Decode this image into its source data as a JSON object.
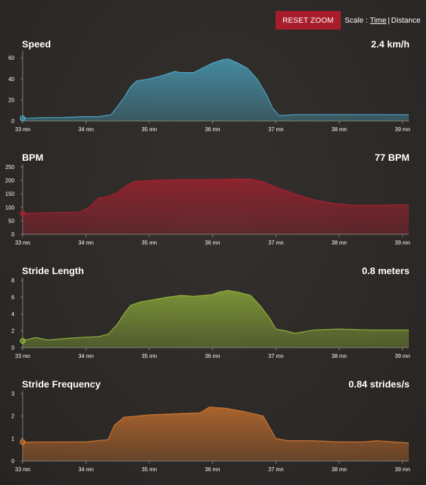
{
  "toolbar": {
    "reset_zoom_label": "RESET ZOOM",
    "scale_label": "Scale :",
    "scale_options": [
      "Time",
      "Distance"
    ],
    "scale_selected": "Time",
    "separator": "|"
  },
  "colors": {
    "speed": "#4ca9c8",
    "bpm": "#a8202f",
    "stride_length": "#93b53a",
    "stride_frequency": "#d2762f",
    "reset_button": "#a81d2c"
  },
  "chart_data": [
    {
      "type": "area",
      "title": "Speed",
      "current_value": "2.4 km/h",
      "x_ticks": [
        "33 mn",
        "34 mn",
        "35 mn",
        "36 mn",
        "37 mn",
        "38 mn",
        "39 mn"
      ],
      "y_ticks": [
        "0",
        "20",
        "40",
        "60"
      ],
      "xlim": [
        33,
        39.1
      ],
      "ylim": [
        0,
        64
      ],
      "x": [
        33,
        33.3,
        33.6,
        33.9,
        34.2,
        34.4,
        34.5,
        34.6,
        34.7,
        34.8,
        35.0,
        35.2,
        35.4,
        35.5,
        35.7,
        35.9,
        36.0,
        36.15,
        36.25,
        36.4,
        36.55,
        36.7,
        36.85,
        36.95,
        37.05,
        37.3,
        37.6,
        38.0,
        38.5,
        39.1
      ],
      "values": [
        2.4,
        3,
        3,
        4,
        4,
        6,
        14,
        22,
        32,
        38,
        40,
        43,
        47,
        46,
        46,
        52,
        55,
        58,
        59,
        55,
        50,
        40,
        25,
        12,
        5,
        6,
        6,
        6,
        6,
        6
      ]
    },
    {
      "type": "area",
      "title": "BPM",
      "current_value": "77 BPM",
      "x_ticks": [
        "33 mn",
        "34 mn",
        "35 mn",
        "36 mn",
        "37 mn",
        "38 mn",
        "39 mn"
      ],
      "y_ticks": [
        "0",
        "50",
        "100",
        "150",
        "200",
        "250"
      ],
      "xlim": [
        33,
        39.1
      ],
      "ylim": [
        0,
        250
      ],
      "x": [
        33,
        33.4,
        33.9,
        34.05,
        34.2,
        34.35,
        34.5,
        34.6,
        34.75,
        35.0,
        35.3,
        35.6,
        36.0,
        36.3,
        36.6,
        36.8,
        37.0,
        37.3,
        37.6,
        37.9,
        38.2,
        38.6,
        39.1
      ],
      "values": [
        77,
        80,
        82,
        100,
        135,
        140,
        155,
        175,
        195,
        200,
        202,
        203,
        203,
        205,
        205,
        195,
        175,
        150,
        128,
        115,
        108,
        108,
        110
      ]
    },
    {
      "type": "area",
      "title": "Stride Length",
      "current_value": "0.8 meters",
      "x_ticks": [
        "33 mn",
        "34 mn",
        "35 mn",
        "36 mn",
        "37 mn",
        "38 mn",
        "39 mn"
      ],
      "y_ticks": [
        "0",
        "2",
        "4",
        "6",
        "8"
      ],
      "xlim": [
        33,
        39.1
      ],
      "ylim": [
        0,
        8
      ],
      "x": [
        33,
        33.2,
        33.4,
        33.7,
        33.9,
        34.2,
        34.35,
        34.5,
        34.6,
        34.7,
        34.85,
        35.0,
        35.3,
        35.5,
        35.7,
        36.0,
        36.1,
        36.25,
        36.4,
        36.6,
        36.75,
        36.9,
        37.0,
        37.15,
        37.3,
        37.6,
        38.0,
        38.5,
        39.1
      ],
      "values": [
        0.8,
        1.2,
        0.9,
        1.1,
        1.2,
        1.3,
        1.6,
        2.8,
        4.0,
        5.0,
        5.4,
        5.6,
        6.0,
        6.2,
        6.1,
        6.3,
        6.6,
        6.8,
        6.6,
        6.2,
        5.0,
        3.5,
        2.2,
        2.0,
        1.7,
        2.1,
        2.2,
        2.1,
        2.1
      ]
    },
    {
      "type": "area",
      "title": "Stride Frequency",
      "current_value": "0.84 strides/s",
      "x_ticks": [
        "33 mn",
        "34 mn",
        "35 mn",
        "36 mn",
        "37 mn",
        "38 mn",
        "39 mn"
      ],
      "y_ticks": [
        "0",
        "1",
        "2",
        "3"
      ],
      "xlim": [
        33,
        39.1
      ],
      "ylim": [
        0,
        3
      ],
      "x": [
        33,
        33.5,
        34.0,
        34.35,
        34.45,
        34.6,
        34.8,
        35.0,
        35.4,
        35.8,
        35.95,
        36.2,
        36.5,
        36.8,
        36.9,
        37.0,
        37.2,
        37.6,
        38.0,
        38.4,
        38.6,
        39.1
      ],
      "values": [
        0.84,
        0.85,
        0.85,
        0.95,
        1.6,
        1.95,
        2.0,
        2.05,
        2.1,
        2.15,
        2.4,
        2.35,
        2.2,
        2.0,
        1.5,
        1.0,
        0.9,
        0.9,
        0.85,
        0.85,
        0.9,
        0.8
      ]
    }
  ]
}
